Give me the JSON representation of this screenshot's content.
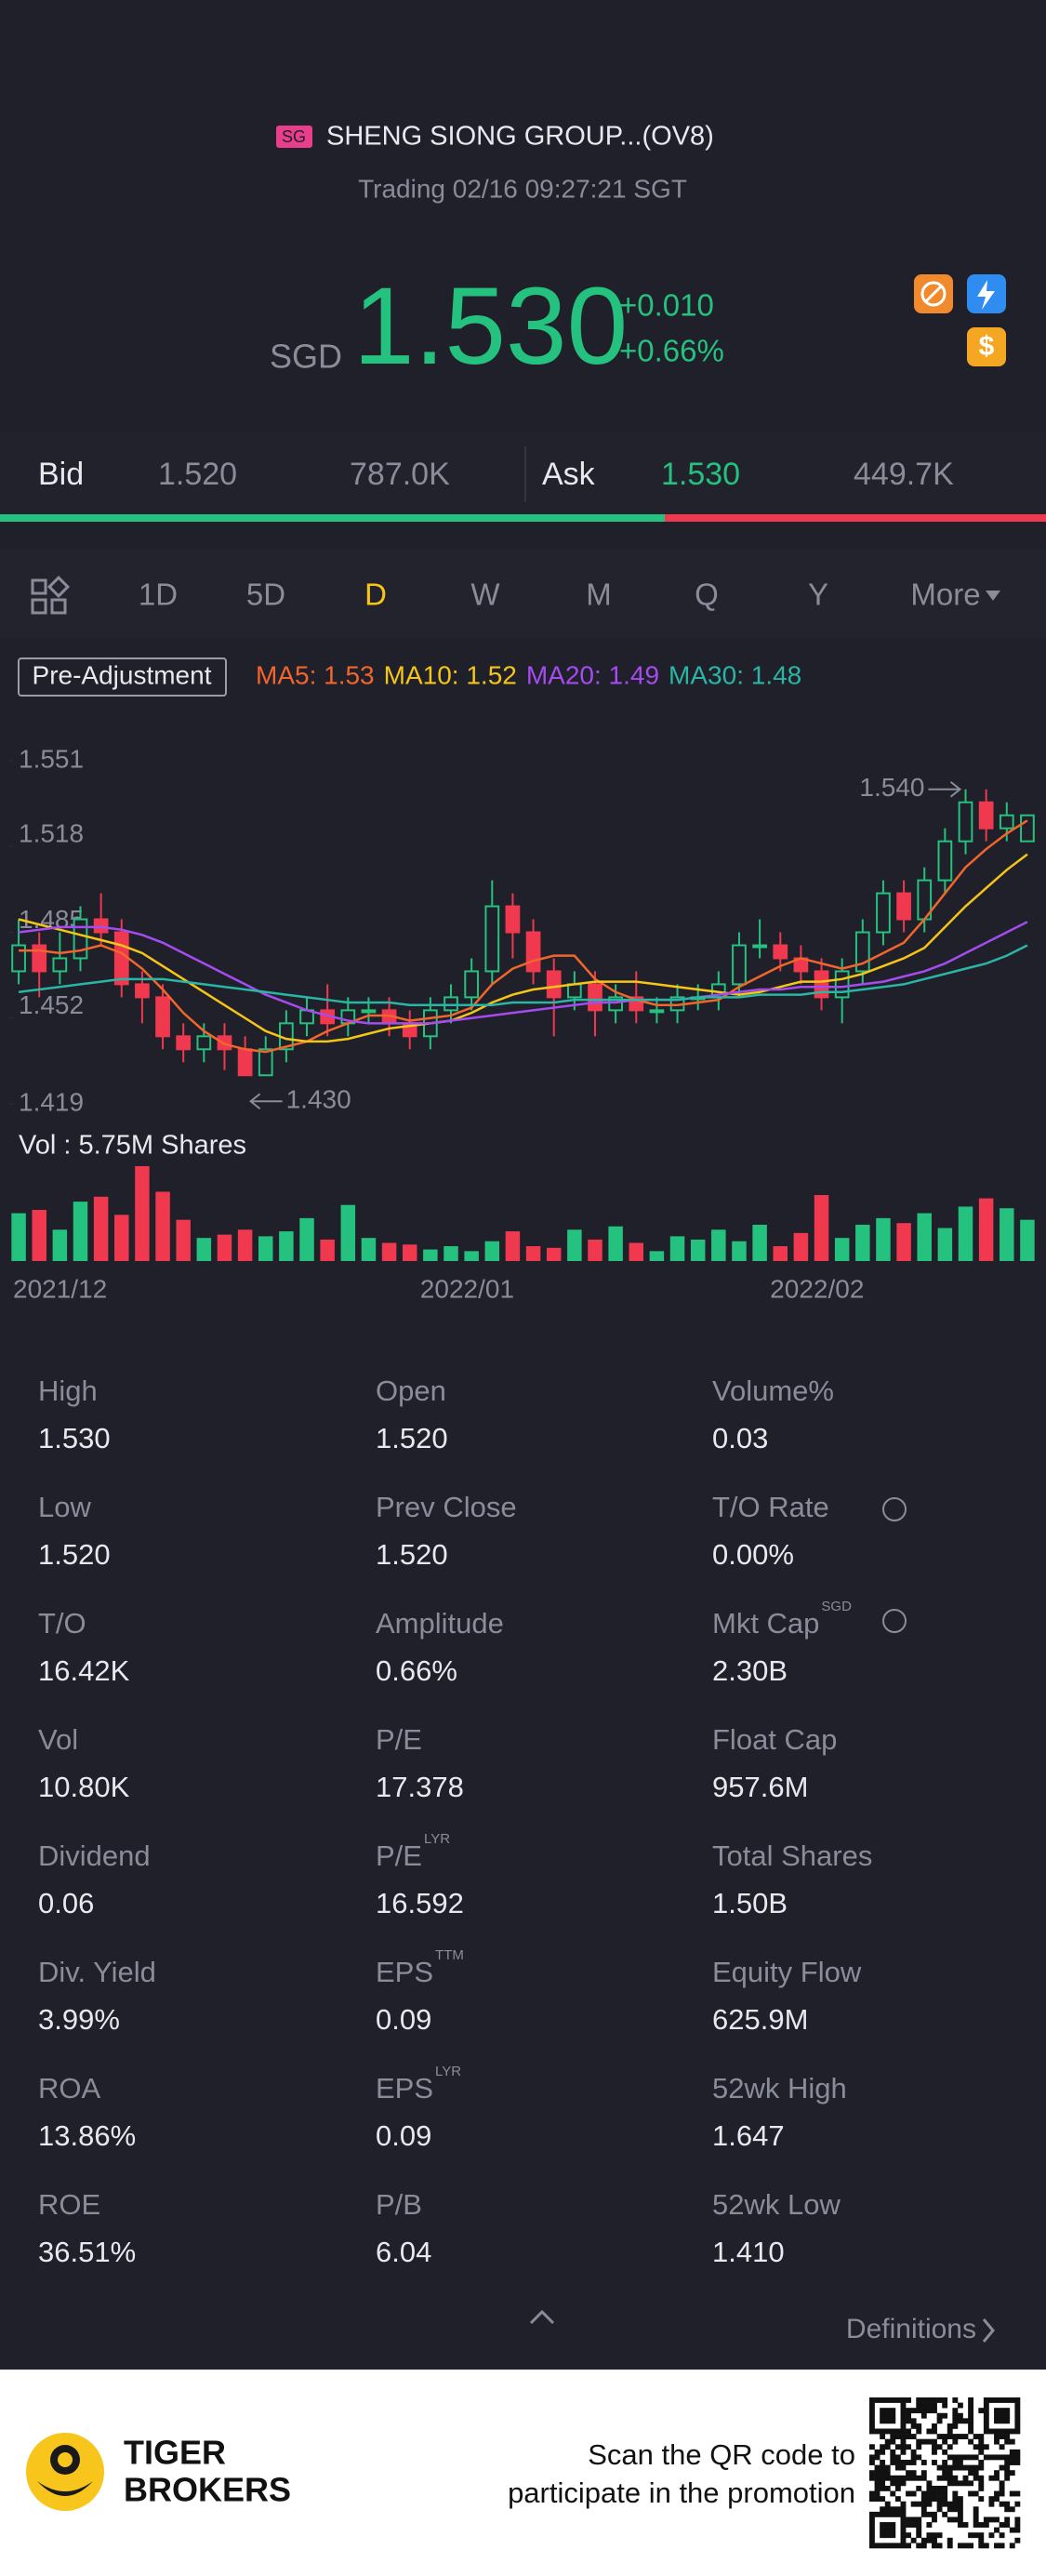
{
  "header": {
    "badge": "SG",
    "name": "SHENG SIONG GROUP...(OV8)",
    "status": "Trading 02/16 09:27:21 SGT"
  },
  "quote": {
    "currency": "SGD",
    "price": "1.530",
    "change": "+0.010",
    "change_pct": "+0.66%"
  },
  "order_book": {
    "bid_label": "Bid",
    "bid": "1.520",
    "bid_size": "787.0K",
    "ask_label": "Ask",
    "ask": "1.530",
    "ask_size": "449.7K"
  },
  "tabs": [
    "1D",
    "5D",
    "D",
    "W",
    "M",
    "Q",
    "Y",
    "More"
  ],
  "active_tab": "D",
  "chart_data": {
    "type": "candlestick",
    "adjustment": "Pre-Adjustment",
    "categories": [
      "2021/12",
      null,
      null,
      null,
      null,
      null,
      null,
      null,
      null,
      null,
      null,
      null,
      null,
      null,
      null,
      null,
      null,
      null,
      null,
      null,
      "2022/01",
      null,
      null,
      null,
      null,
      null,
      null,
      null,
      null,
      null,
      null,
      null,
      null,
      null,
      null,
      null,
      null,
      "2022/02",
      null,
      null,
      null,
      null,
      null,
      null,
      null,
      null,
      null,
      null,
      null,
      null
    ],
    "open": [
      1.47,
      1.48,
      1.47,
      1.475,
      1.49,
      1.485,
      1.465,
      1.46,
      1.445,
      1.44,
      1.445,
      1.44,
      1.43,
      1.44,
      1.45,
      1.455,
      1.45,
      1.455,
      1.455,
      1.45,
      1.445,
      1.455,
      1.46,
      1.47,
      1.495,
      1.485,
      1.47,
      1.46,
      1.465,
      1.455,
      1.46,
      1.455,
      1.455,
      1.46,
      1.46,
      1.465,
      1.48,
      1.48,
      1.475,
      1.47,
      1.46,
      1.47,
      1.485,
      1.5,
      1.49,
      1.505,
      1.52,
      1.535,
      1.525,
      1.52
    ],
    "high": [
      1.49,
      1.485,
      1.485,
      1.495,
      1.5,
      1.49,
      1.47,
      1.465,
      1.45,
      1.45,
      1.45,
      1.445,
      1.445,
      1.455,
      1.46,
      1.465,
      1.46,
      1.46,
      1.46,
      1.455,
      1.46,
      1.465,
      1.475,
      1.505,
      1.5,
      1.49,
      1.475,
      1.47,
      1.47,
      1.465,
      1.47,
      1.46,
      1.465,
      1.465,
      1.47,
      1.485,
      1.49,
      1.485,
      1.48,
      1.475,
      1.475,
      1.49,
      1.505,
      1.505,
      1.51,
      1.525,
      1.54,
      1.54,
      1.535,
      1.53
    ],
    "low": [
      1.465,
      1.46,
      1.465,
      1.47,
      1.48,
      1.46,
      1.45,
      1.44,
      1.435,
      1.435,
      1.432,
      1.43,
      1.43,
      1.435,
      1.445,
      1.445,
      1.445,
      1.45,
      1.445,
      1.44,
      1.44,
      1.45,
      1.455,
      1.465,
      1.475,
      1.465,
      1.445,
      1.455,
      1.445,
      1.45,
      1.45,
      1.45,
      1.45,
      1.455,
      1.455,
      1.46,
      1.475,
      1.47,
      1.465,
      1.455,
      1.45,
      1.465,
      1.48,
      1.485,
      1.485,
      1.5,
      1.515,
      1.52,
      1.52,
      1.52
    ],
    "close": [
      1.48,
      1.47,
      1.475,
      1.49,
      1.485,
      1.465,
      1.46,
      1.445,
      1.44,
      1.445,
      1.44,
      1.43,
      1.44,
      1.45,
      1.455,
      1.45,
      1.455,
      1.455,
      1.45,
      1.445,
      1.455,
      1.46,
      1.47,
      1.495,
      1.485,
      1.47,
      1.46,
      1.465,
      1.455,
      1.46,
      1.455,
      1.455,
      1.46,
      1.46,
      1.465,
      1.48,
      1.48,
      1.475,
      1.47,
      1.46,
      1.47,
      1.485,
      1.5,
      1.49,
      1.505,
      1.52,
      1.535,
      1.525,
      1.53,
      1.53
    ],
    "up_color": "#25c17f",
    "down_color": "#f0384f",
    "ylim": [
      1.419,
      1.551
    ],
    "yticks": [
      1.551,
      1.518,
      1.485,
      1.452,
      1.419
    ],
    "max_label": "1.540",
    "min_label": "1.430",
    "ma": [
      {
        "name": "MA5: 1.53",
        "color": "#f2652d",
        "values": [
          1.478,
          1.478,
          1.477,
          1.478,
          1.48,
          1.477,
          1.471,
          1.463,
          1.454,
          1.447,
          1.442,
          1.44,
          1.439,
          1.441,
          1.443,
          1.447,
          1.45,
          1.453,
          1.453,
          1.451,
          1.452,
          1.453,
          1.456,
          1.465,
          1.471,
          1.474,
          1.476,
          1.476,
          1.467,
          1.462,
          1.459,
          1.457,
          1.457,
          1.458,
          1.459,
          1.464,
          1.468,
          1.472,
          1.475,
          1.473,
          1.471,
          1.473,
          1.477,
          1.481,
          1.49,
          1.5,
          1.51,
          1.517,
          1.523,
          1.528
        ]
      },
      {
        "name": "MA10: 1.52",
        "color": "#f5c518",
        "values": [
          1.49,
          1.488,
          1.486,
          1.484,
          1.482,
          1.48,
          1.477,
          1.472,
          1.467,
          1.462,
          1.457,
          1.452,
          1.447,
          1.444,
          1.443,
          1.443,
          1.444,
          1.446,
          1.448,
          1.449,
          1.45,
          1.451,
          1.454,
          1.458,
          1.461,
          1.463,
          1.464,
          1.465,
          1.466,
          1.466,
          1.466,
          1.465,
          1.464,
          1.463,
          1.462,
          1.461,
          1.462,
          1.464,
          1.466,
          1.466,
          1.467,
          1.469,
          1.472,
          1.475,
          1.479,
          1.487,
          1.495,
          1.502,
          1.509,
          1.515
        ]
      },
      {
        "name": "MA20: 1.49",
        "color": "#a54cf0",
        "values": [
          1.485,
          1.486,
          1.487,
          1.487,
          1.487,
          1.486,
          1.484,
          1.481,
          1.477,
          1.473,
          1.469,
          1.465,
          1.461,
          1.458,
          1.455,
          1.453,
          1.451,
          1.45,
          1.45,
          1.45,
          1.45,
          1.451,
          1.452,
          1.453,
          1.454,
          1.455,
          1.456,
          1.457,
          1.458,
          1.458,
          1.459,
          1.459,
          1.459,
          1.46,
          1.461,
          1.462,
          1.463,
          1.463,
          1.464,
          1.464,
          1.464,
          1.465,
          1.466,
          1.468,
          1.47,
          1.473,
          1.477,
          1.481,
          1.485,
          1.489
        ]
      },
      {
        "name": "MA30: 1.48",
        "color": "#2bb5a5",
        "values": [
          1.462,
          1.463,
          1.464,
          1.465,
          1.466,
          1.467,
          1.467,
          1.467,
          1.466,
          1.465,
          1.464,
          1.463,
          1.462,
          1.461,
          1.46,
          1.459,
          1.458,
          1.458,
          1.458,
          1.457,
          1.457,
          1.457,
          1.457,
          1.457,
          1.458,
          1.458,
          1.458,
          1.459,
          1.459,
          1.459,
          1.459,
          1.459,
          1.459,
          1.46,
          1.46,
          1.46,
          1.461,
          1.461,
          1.461,
          1.462,
          1.462,
          1.463,
          1.464,
          1.465,
          1.467,
          1.469,
          1.471,
          1.473,
          1.476,
          1.48
        ]
      }
    ],
    "volume_label": "Vol  : 5.75M Shares",
    "volume": [
      2.9,
      3.1,
      1.9,
      3.6,
      3.9,
      2.8,
      5.75,
      4.2,
      2.5,
      1.4,
      1.6,
      1.9,
      1.5,
      1.8,
      2.6,
      1.3,
      3.4,
      1.4,
      1.1,
      1.0,
      0.7,
      0.9,
      0.6,
      1.2,
      1.8,
      0.9,
      0.8,
      1.9,
      1.3,
      2.1,
      1.1,
      0.6,
      1.5,
      1.3,
      1.9,
      1.2,
      2.2,
      0.9,
      1.7,
      4.0,
      1.4,
      2.2,
      2.6,
      2.3,
      2.9,
      2.0,
      3.3,
      3.8,
      3.2,
      2.5
    ],
    "volume_ylim": [
      0,
      5.75
    ]
  },
  "stats": [
    [
      {
        "label": "High",
        "value": "1.530"
      },
      {
        "label": "Open",
        "value": "1.520"
      },
      {
        "label": "Volume%",
        "value": "0.03"
      }
    ],
    [
      {
        "label": "Low",
        "value": "1.520"
      },
      {
        "label": "Prev Close",
        "value": "1.520"
      },
      {
        "label": "T/O Rate",
        "value": "0.00%"
      }
    ],
    [
      {
        "label": "T/O",
        "value": "16.42K"
      },
      {
        "label": "Amplitude",
        "value": "0.66%"
      },
      {
        "label": "Mkt Cap",
        "sup": "SGD",
        "value": "2.30B"
      }
    ],
    [
      {
        "label": "Vol",
        "value": "10.80K"
      },
      {
        "label": "P/E",
        "value": "17.378"
      },
      {
        "label": "Float Cap",
        "value": "957.6M"
      }
    ],
    [
      {
        "label": "Dividend",
        "value": "0.06"
      },
      {
        "label": "P/E",
        "sup": "LYR",
        "value": "16.592"
      },
      {
        "label": "Total Shares",
        "value": "1.50B"
      }
    ],
    [
      {
        "label": "Div. Yield",
        "value": "3.99%"
      },
      {
        "label": "EPS",
        "sup": "TTM",
        "value": "0.09"
      },
      {
        "label": "Equity Flow",
        "value": "625.9M"
      }
    ],
    [
      {
        "label": "ROA",
        "value": "13.86%"
      },
      {
        "label": "EPS",
        "sup": "LYR",
        "value": "0.09"
      },
      {
        "label": "52wk High",
        "value": "1.647"
      }
    ],
    [
      {
        "label": "ROE",
        "value": "36.51%"
      },
      {
        "label": "P/B",
        "value": "6.04"
      },
      {
        "label": "52wk Low",
        "value": "1.410"
      }
    ]
  ],
  "definitions": "Definitions",
  "footer": {
    "brand": [
      "TIGER",
      "BROKERS"
    ],
    "promo": [
      "Scan the QR code to",
      "participate in the promotion"
    ]
  }
}
